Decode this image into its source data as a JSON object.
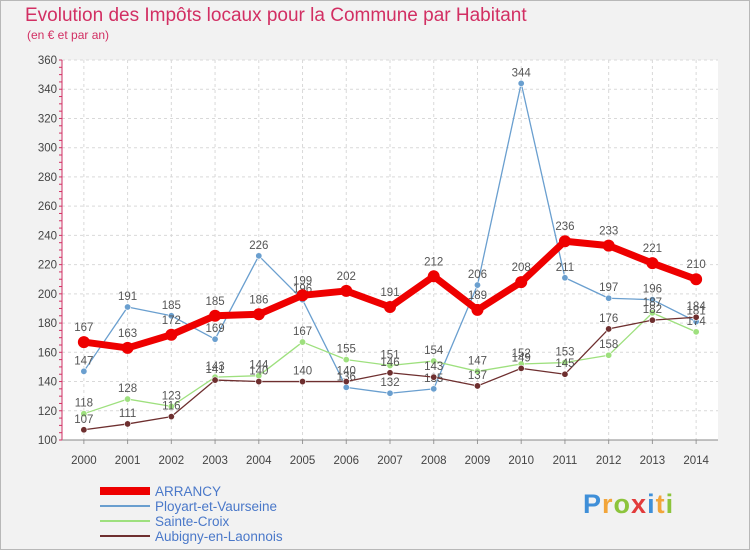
{
  "header": {
    "title": "Evolution des Impôts locaux pour la Commune par Habitant",
    "subtitle": "(en € et par an)"
  },
  "logo": {
    "text": "Proxiti",
    "letters": [
      "P",
      "r",
      "o",
      "x",
      "i",
      "t",
      "i"
    ],
    "colors": [
      "#3f8fd8",
      "#f2a53a",
      "#8cc43c",
      "#e23b3b",
      "#3f8fd8",
      "#f2a53a",
      "#8cc43c"
    ]
  },
  "chart_data": {
    "type": "line",
    "title": "Evolution des Impôts locaux pour la Commune par Habitant",
    "subtitle": "(en € et par an)",
    "xlabel": "",
    "ylabel": "",
    "x": [
      2000,
      2001,
      2002,
      2003,
      2004,
      2005,
      2006,
      2007,
      2008,
      2009,
      2010,
      2011,
      2012,
      2013,
      2014
    ],
    "ylim": [
      100,
      360
    ],
    "yticks": [
      100,
      120,
      140,
      160,
      180,
      200,
      220,
      240,
      260,
      280,
      300,
      320,
      340,
      360
    ],
    "grid": true,
    "legend_position": "bottom-left",
    "series": [
      {
        "name": "ARRANCY",
        "color": "#ee0000",
        "values": [
          167,
          163,
          172,
          185,
          186,
          199,
          202,
          191,
          212,
          189,
          208,
          236,
          233,
          221,
          210
        ]
      },
      {
        "name": "Ployart-et-Vaurseine",
        "color": "#6a9fcf",
        "values": [
          147,
          191,
          185,
          169,
          226,
          196,
          136,
          132,
          135,
          206,
          344,
          211,
          197,
          196,
          181
        ]
      },
      {
        "name": "Sainte-Croix",
        "color": "#9ee07e",
        "values": [
          118,
          128,
          123,
          143,
          144,
          167,
          155,
          151,
          154,
          147,
          152,
          153,
          158,
          187,
          174
        ]
      },
      {
        "name": "Aubigny-en-Laonnois",
        "color": "#6e2f2f",
        "values": [
          107,
          111,
          116,
          141,
          140,
          140,
          140,
          146,
          143,
          137,
          149,
          145,
          176,
          182,
          184
        ]
      }
    ]
  }
}
